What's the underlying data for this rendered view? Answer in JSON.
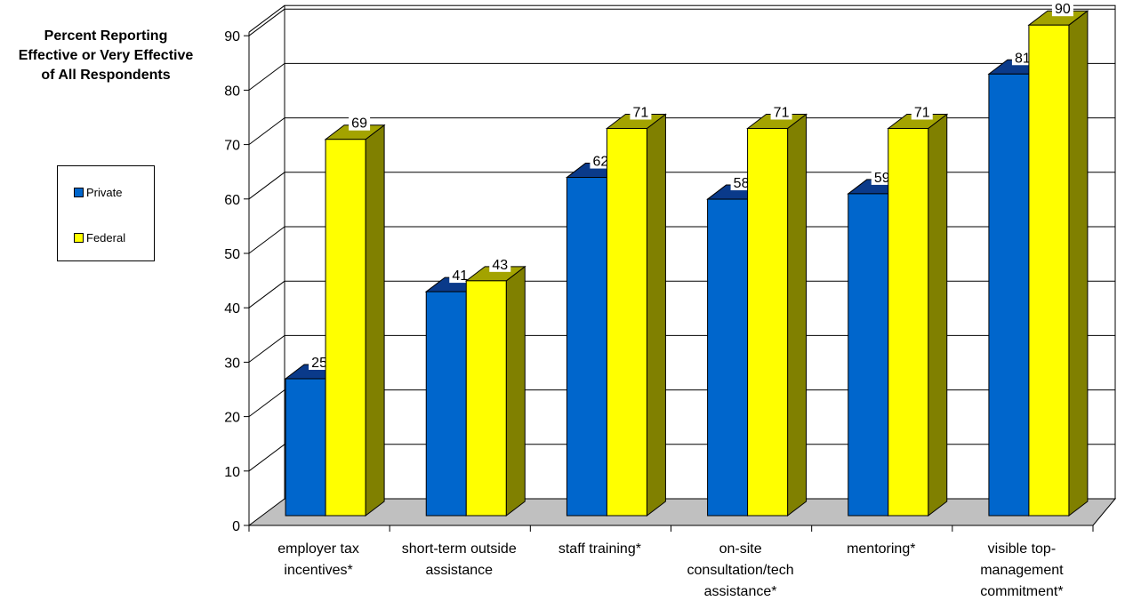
{
  "chart_data": {
    "type": "bar",
    "title": "",
    "ylabel": [
      "Percent Reporting",
      "Effective or Very Effective",
      "of All Respondents"
    ],
    "categories": [
      [
        "employer tax",
        "incentives*"
      ],
      [
        "short-term outside",
        "assistance"
      ],
      [
        "staff training*"
      ],
      [
        "on-site",
        "consultation/tech",
        "assistance*"
      ],
      [
        "mentoring*"
      ],
      [
        "visible top-",
        "management",
        "commitment*"
      ]
    ],
    "series": [
      {
        "name": "Private",
        "values": [
          25,
          41,
          62,
          58,
          59,
          81
        ],
        "color": "#0066cc",
        "side_color": "#1a3e99",
        "top_color": "#0a3a8a"
      },
      {
        "name": "Federal",
        "values": [
          69,
          43,
          71,
          71,
          71,
          90
        ],
        "color": "#ffff00",
        "side_color": "#808000",
        "top_color": "#a3a300"
      }
    ],
    "ylim": [
      0,
      90
    ],
    "yticks": [
      0,
      10,
      20,
      30,
      40,
      50,
      60,
      70,
      80,
      90
    ],
    "grid": true,
    "legend_position": "left",
    "style": "3d-clustered-bar"
  }
}
